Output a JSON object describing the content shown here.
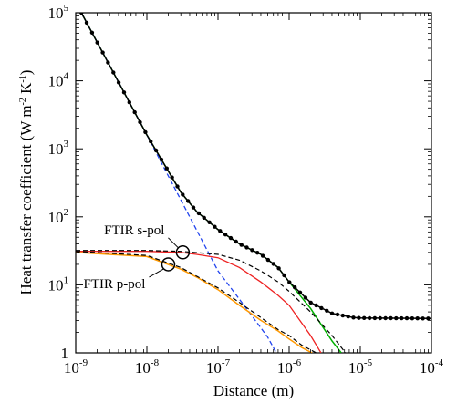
{
  "chart_data": {
    "type": "line",
    "title": "",
    "xlabel": "Distance (m)",
    "ylabel": "Heat transfer coefficient (W m-2 K-1)",
    "ylabel_parts": {
      "base": "Heat transfer coefficient (W m",
      "exp1": "-2",
      "mid": " K",
      "exp2": "-1",
      "end": ")"
    },
    "xscale": "log",
    "yscale": "log",
    "xlim": [
      1e-09,
      0.0001
    ],
    "ylim": [
      1,
      100000.0
    ],
    "grid": false,
    "legend": "none",
    "x_ticks": [
      {
        "base": "10",
        "exp": "-9"
      },
      {
        "base": "10",
        "exp": "-8"
      },
      {
        "base": "10",
        "exp": "-7"
      },
      {
        "base": "10",
        "exp": "-6"
      },
      {
        "base": "10",
        "exp": "-5"
      },
      {
        "base": "10",
        "exp": "-4"
      }
    ],
    "y_ticks": [
      {
        "base": "1",
        "exp": ""
      },
      {
        "base": "10",
        "exp": "1"
      },
      {
        "base": "10",
        "exp": "2"
      },
      {
        "base": "10",
        "exp": "3"
      },
      {
        "base": "10",
        "exp": "4"
      },
      {
        "base": "10",
        "exp": "5"
      }
    ],
    "annotations": [
      {
        "text": "FTIR s-pol",
        "x": 3.2e-08,
        "y": 30
      },
      {
        "text": "FTIR p-pol",
        "x": 2e-08,
        "y": 20
      }
    ],
    "series": [
      {
        "color": "#00b000",
        "style": "solid",
        "width": 1.5,
        "points": [
          [
            1.2e-09,
            100000.0
          ],
          [
            1e-08,
            1600.0
          ],
          [
            3e-08,
            230
          ],
          [
            5e-08,
            120
          ],
          [
            1e-07,
            65
          ],
          [
            2e-07,
            40
          ],
          [
            4e-07,
            28
          ],
          [
            7e-07,
            18
          ],
          [
            1e-06,
            11
          ],
          [
            2e-06,
            4.5
          ],
          [
            4e-06,
            1.5
          ],
          [
            5.4e-06,
            1
          ]
        ]
      },
      {
        "color": "#2244ee",
        "style": "dashed",
        "width": 1.3,
        "points": [
          [
            1.2e-09,
            100000.0
          ],
          [
            1e-08,
            1600.0
          ],
          [
            1e-07,
            16
          ],
          [
            3e-07,
            3.5
          ],
          [
            5e-07,
            1.7
          ],
          [
            6.6e-07,
            1
          ]
        ]
      },
      {
        "color": "#000000",
        "style": "solid",
        "width": 1.5,
        "markers": true,
        "points": [
          [
            1.2e-09,
            100000.0
          ],
          [
            1e-08,
            1600.0
          ],
          [
            3e-08,
            230
          ],
          [
            5e-08,
            120
          ],
          [
            1e-07,
            65
          ],
          [
            2e-07,
            40
          ],
          [
            4e-07,
            28
          ],
          [
            7e-07,
            18
          ],
          [
            1e-06,
            11
          ],
          [
            2e-06,
            5.5
          ],
          [
            4e-06,
            3.8
          ],
          [
            8e-06,
            3.3
          ],
          [
            1e-05,
            3.25
          ],
          [
            0.0001,
            3.2
          ]
        ]
      },
      {
        "color": "#ee2222",
        "style": "solid",
        "width": 1.3,
        "points": [
          [
            1e-09,
            31
          ],
          [
            1e-08,
            31
          ],
          [
            3e-08,
            30
          ],
          [
            5e-08,
            28
          ],
          [
            1e-07,
            25
          ],
          [
            2e-07,
            18
          ],
          [
            4e-07,
            11
          ],
          [
            7e-07,
            7
          ],
          [
            1e-06,
            5
          ],
          [
            2e-06,
            1.8
          ],
          [
            2.8e-06,
            1
          ]
        ]
      },
      {
        "color": "#000000",
        "style": "dashed",
        "width": 1.2,
        "points": [
          [
            1e-09,
            32
          ],
          [
            1e-08,
            32
          ],
          [
            3e-08,
            31
          ],
          [
            1e-07,
            28
          ],
          [
            2e-07,
            23
          ],
          [
            4e-07,
            16
          ],
          [
            7e-07,
            11
          ],
          [
            1e-06,
            8
          ],
          [
            2e-06,
            4
          ],
          [
            4e-06,
            1.8
          ],
          [
            6.2e-06,
            1
          ]
        ]
      },
      {
        "color": "#ff9900",
        "style": "solid",
        "width": 1.5,
        "points": [
          [
            1e-09,
            30
          ],
          [
            1e-08,
            26
          ],
          [
            3e-08,
            17
          ],
          [
            5e-08,
            13
          ],
          [
            1e-07,
            8.5
          ],
          [
            2e-07,
            5
          ],
          [
            4e-07,
            3
          ],
          [
            7e-07,
            2.1
          ],
          [
            1e-06,
            1.6
          ],
          [
            1.5e-06,
            1.2
          ],
          [
            2.1e-06,
            1
          ]
        ]
      },
      {
        "color": "#000000",
        "style": "dashed",
        "width": 1.2,
        "points": [
          [
            1e-09,
            31
          ],
          [
            1e-08,
            27
          ],
          [
            3e-08,
            18
          ],
          [
            1e-07,
            9
          ],
          [
            2e-07,
            5.5
          ],
          [
            4e-07,
            3.3
          ],
          [
            7e-07,
            2.2
          ],
          [
            1e-06,
            1.8
          ],
          [
            1.5e-06,
            1.3
          ],
          [
            2.4e-06,
            1
          ]
        ]
      }
    ]
  }
}
